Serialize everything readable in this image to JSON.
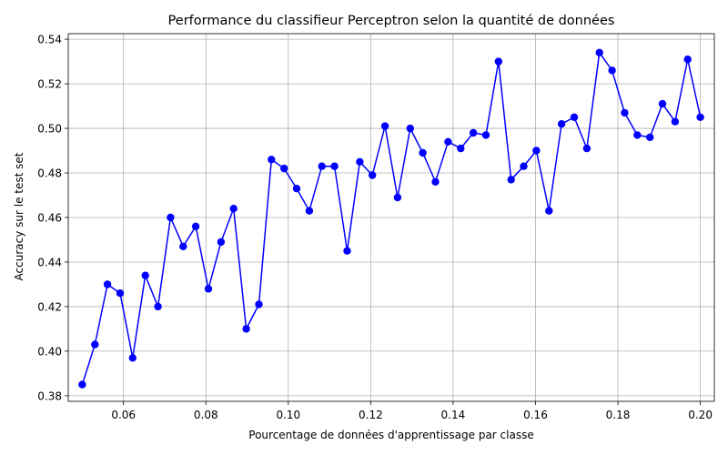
{
  "chart_data": {
    "type": "line",
    "title": "Performance du classifieur Perceptron selon la quantité de données",
    "xlabel": "Pourcentage de données d'apprentissage par classe",
    "ylabel": "Accuracy sur le test set",
    "xlim": [
      0.0466,
      0.2034
    ],
    "ylim": [
      0.3775,
      0.5425
    ],
    "xticks": [
      0.06,
      0.08,
      0.1,
      0.12,
      0.14,
      0.16,
      0.18,
      0.2
    ],
    "xtick_labels": [
      "0.06",
      "0.08",
      "0.10",
      "0.12",
      "0.14",
      "0.16",
      "0.18",
      "0.20"
    ],
    "yticks": [
      0.38,
      0.4,
      0.42,
      0.44,
      0.46,
      0.48,
      0.5,
      0.52,
      0.54
    ],
    "ytick_labels": [
      "0.38",
      "0.40",
      "0.42",
      "0.44",
      "0.46",
      "0.48",
      "0.50",
      "0.52",
      "0.54"
    ],
    "grid": true,
    "color": "#0000ff",
    "series": [
      {
        "marker": "circle",
        "x": [
          0.05,
          0.05306,
          0.05612,
          0.05918,
          0.06224,
          0.06531,
          0.06837,
          0.07143,
          0.07449,
          0.07755,
          0.08061,
          0.08367,
          0.08673,
          0.0898,
          0.09286,
          0.09592,
          0.09898,
          0.10204,
          0.1051,
          0.10816,
          0.11122,
          0.11429,
          0.11735,
          0.12041,
          0.12347,
          0.12653,
          0.12959,
          0.13265,
          0.13571,
          0.13878,
          0.14184,
          0.1449,
          0.14796,
          0.15102,
          0.15408,
          0.15714,
          0.1602,
          0.16327,
          0.16633,
          0.16939,
          0.17245,
          0.17551,
          0.17857,
          0.18163,
          0.18469,
          0.18776,
          0.19082,
          0.19388,
          0.19694,
          0.2
        ],
        "y": [
          0.385,
          0.403,
          0.43,
          0.426,
          0.397,
          0.434,
          0.42,
          0.46,
          0.447,
          0.456,
          0.428,
          0.449,
          0.464,
          0.41,
          0.421,
          0.486,
          0.482,
          0.473,
          0.463,
          0.483,
          0.483,
          0.445,
          0.485,
          0.479,
          0.501,
          0.469,
          0.5,
          0.489,
          0.476,
          0.494,
          0.491,
          0.498,
          0.497,
          0.53,
          0.477,
          0.483,
          0.49,
          0.463,
          0.502,
          0.505,
          0.491,
          0.534,
          0.526,
          0.507,
          0.497,
          0.496,
          0.511,
          0.503,
          0.531,
          0.505
        ]
      }
    ]
  }
}
